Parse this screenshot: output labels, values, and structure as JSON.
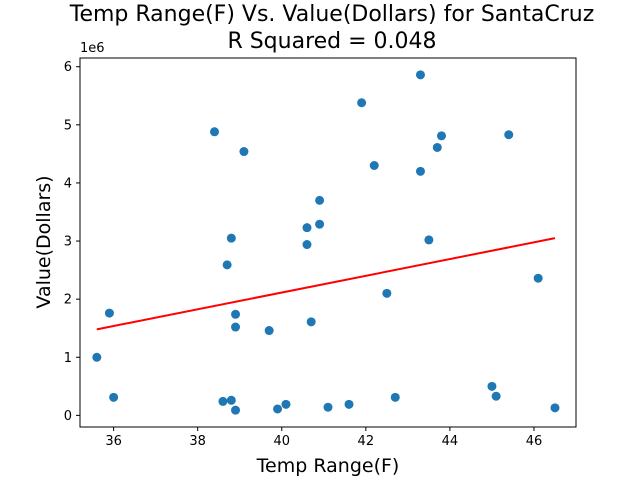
{
  "chart_data": {
    "type": "scatter",
    "title_line1": "Temp Range(F) Vs. Value(Dollars) for SantaCruz",
    "title_line2": "R Squared =  0.048",
    "xlabel": "Temp Range(F)",
    "ylabel": "Value(Dollars)",
    "y_offset_label": "1e6",
    "xlim": [
      35.2,
      47.0
    ],
    "ylim": [
      -0.2,
      6.15
    ],
    "x_ticks": [
      36,
      38,
      40,
      42,
      44,
      46
    ],
    "x_tick_labels": [
      "36",
      "38",
      "40",
      "42",
      "44",
      "46"
    ],
    "y_ticks": [
      0,
      1,
      2,
      3,
      4,
      5,
      6
    ],
    "y_tick_labels": [
      "0",
      "1",
      "2",
      "3",
      "4",
      "5",
      "6"
    ],
    "point_color": "#1f77b4",
    "line_color": "#ff0000",
    "points": [
      {
        "x": 35.6,
        "y": 1.0
      },
      {
        "x": 35.9,
        "y": 1.76
      },
      {
        "x": 36.0,
        "y": 0.31
      },
      {
        "x": 38.4,
        "y": 4.88
      },
      {
        "x": 38.6,
        "y": 0.24
      },
      {
        "x": 38.7,
        "y": 2.59
      },
      {
        "x": 38.8,
        "y": 3.05
      },
      {
        "x": 38.8,
        "y": 0.26
      },
      {
        "x": 38.9,
        "y": 1.74
      },
      {
        "x": 38.9,
        "y": 1.52
      },
      {
        "x": 38.9,
        "y": 0.09
      },
      {
        "x": 39.1,
        "y": 4.54
      },
      {
        "x": 39.7,
        "y": 1.46
      },
      {
        "x": 39.9,
        "y": 0.11
      },
      {
        "x": 40.1,
        "y": 0.19
      },
      {
        "x": 40.6,
        "y": 3.23
      },
      {
        "x": 40.6,
        "y": 2.94
      },
      {
        "x": 40.7,
        "y": 1.61
      },
      {
        "x": 40.9,
        "y": 3.7
      },
      {
        "x": 40.9,
        "y": 3.29
      },
      {
        "x": 41.1,
        "y": 0.14
      },
      {
        "x": 41.6,
        "y": 0.19
      },
      {
        "x": 41.9,
        "y": 5.38
      },
      {
        "x": 42.2,
        "y": 4.3
      },
      {
        "x": 42.5,
        "y": 2.1
      },
      {
        "x": 42.7,
        "y": 0.31
      },
      {
        "x": 43.3,
        "y": 5.86
      },
      {
        "x": 43.3,
        "y": 4.2
      },
      {
        "x": 43.5,
        "y": 3.02
      },
      {
        "x": 43.7,
        "y": 4.61
      },
      {
        "x": 43.8,
        "y": 4.81
      },
      {
        "x": 45.0,
        "y": 0.5
      },
      {
        "x": 45.1,
        "y": 0.33
      },
      {
        "x": 45.4,
        "y": 4.83
      },
      {
        "x": 46.1,
        "y": 2.36
      },
      {
        "x": 46.5,
        "y": 0.13
      }
    ],
    "regression_line": {
      "x": [
        35.6,
        46.5
      ],
      "y": [
        1.48,
        3.05
      ]
    }
  }
}
